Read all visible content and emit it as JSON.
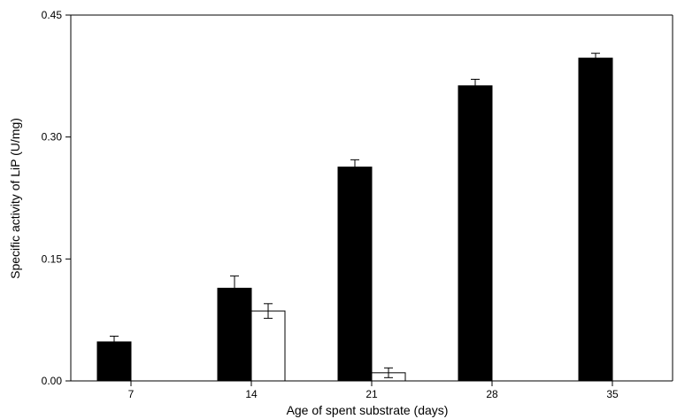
{
  "chart_data": {
    "type": "bar",
    "xlabel": "Age of spent substrate (days)",
    "ylabel": "Specific activity of LiP (U/mg)",
    "categories": [
      "7",
      "14",
      "21",
      "28",
      "35"
    ],
    "ylim": [
      0,
      0.45
    ],
    "yticks": [
      "0.00",
      "0.15",
      "0.30",
      "0.45"
    ],
    "grid": false,
    "legend": "none",
    "series": [
      {
        "color": "#000000",
        "values": [
          0.048,
          0.114,
          0.263,
          0.363,
          0.397
        ],
        "errors": [
          0.007,
          0.015,
          0.009,
          0.008,
          0.006
        ]
      },
      {
        "color": "#ffffff",
        "values": [
          0,
          0.086,
          0.01,
          0,
          0
        ],
        "errors": [
          0,
          0.009,
          0.006,
          0,
          0
        ]
      }
    ]
  }
}
